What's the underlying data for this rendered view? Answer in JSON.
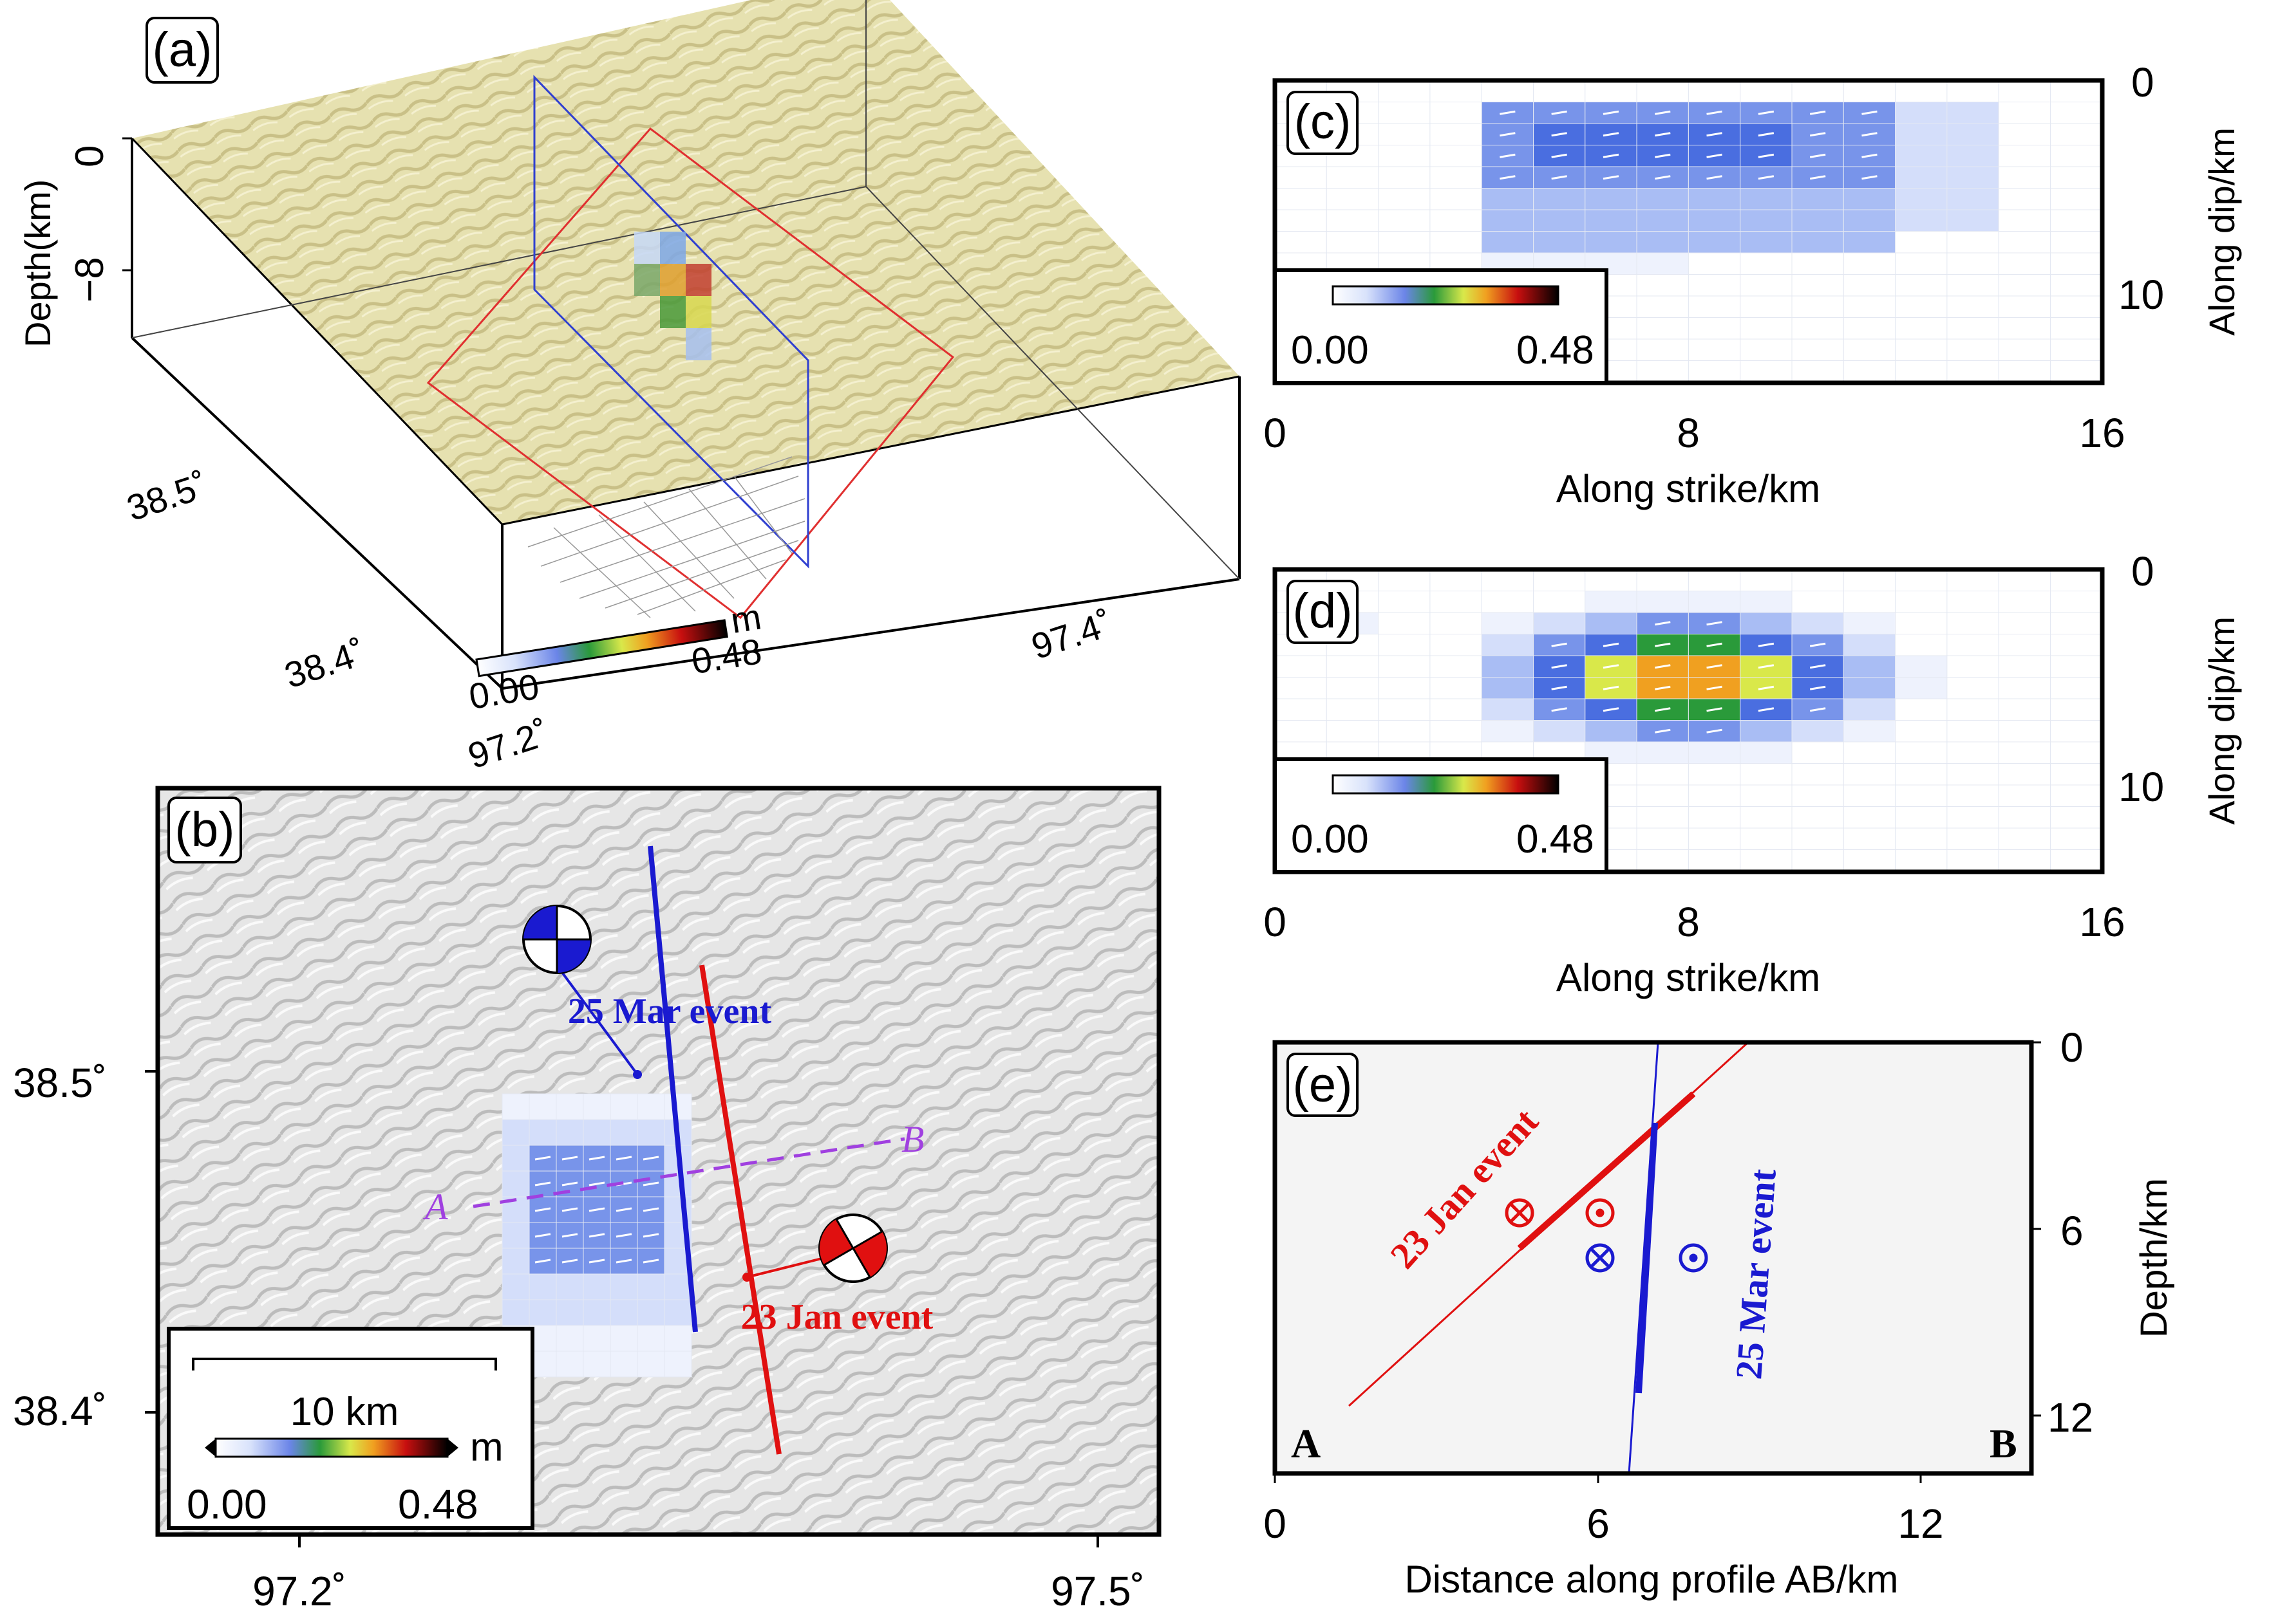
{
  "colors": {
    "red_event": "#e01010",
    "blue_event": "#1a1ad0",
    "profile": "#a040e0",
    "terrain_a": "#e8e3b0",
    "panel_e_bg": "#f4f4f4"
  },
  "panel_a": {
    "label": "(a)",
    "depth_title": "Depth(km)",
    "depth_ticks": [
      "0",
      "−8"
    ],
    "lat_ticks": [
      "38.5˚",
      "38.4˚"
    ],
    "lon_ticks": [
      "97.2˚",
      "97.4˚"
    ],
    "colorbar": {
      "min": "0.00",
      "max": "0.48",
      "unit": "m"
    }
  },
  "panel_b": {
    "label": "(b)",
    "lat_ticks": [
      "38.5˚",
      "38.4˚"
    ],
    "lon_ticks": [
      "97.2˚",
      "97.5˚"
    ],
    "event_mar": "25 Mar event",
    "event_jan": "23 Jan event",
    "profile_a": "A",
    "profile_b": "B",
    "scalebar": "10 km",
    "colorbar": {
      "min": "0.00",
      "max": "0.48",
      "unit": "m"
    }
  },
  "panel_c": {
    "label": "(c)",
    "xlabel": "Along strike/km",
    "ylabel": "Along dip/km",
    "x_ticks": [
      "0",
      "8",
      "16"
    ],
    "y_ticks": [
      "0",
      "10"
    ],
    "colorbar": {
      "min": "0.00",
      "max": "0.48"
    }
  },
  "panel_d": {
    "label": "(d)",
    "xlabel": "Along strike/km",
    "ylabel": "Along dip/km",
    "x_ticks": [
      "0",
      "8",
      "16"
    ],
    "y_ticks": [
      "0",
      "10"
    ],
    "colorbar": {
      "min": "0.00",
      "max": "0.48"
    }
  },
  "panel_e": {
    "label": "(e)",
    "xlabel": "Distance along profile AB/km",
    "ylabel": "Depth/km",
    "x_ticks": [
      "0",
      "6",
      "12"
    ],
    "y_ticks": [
      "0",
      "6",
      "12"
    ],
    "event_jan": "23 Jan event",
    "event_mar": "25 Mar event",
    "end_a": "A",
    "end_b": "B"
  }
}
